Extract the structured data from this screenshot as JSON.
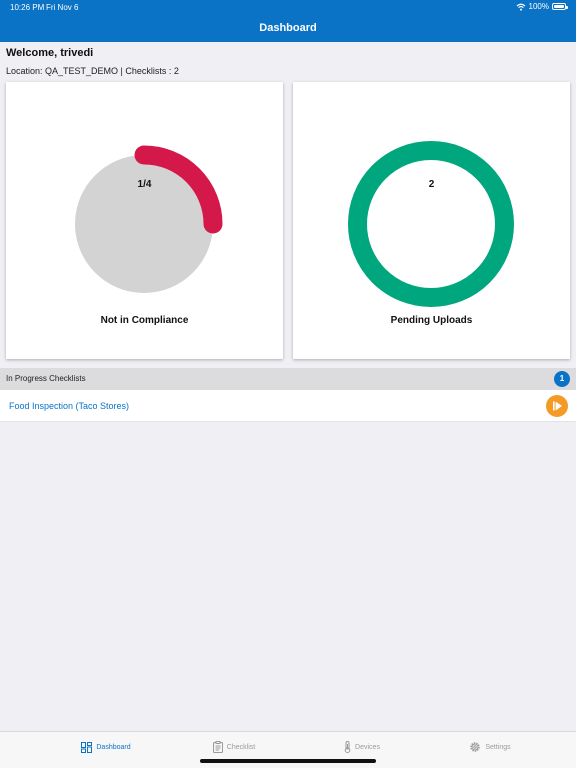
{
  "status_bar": {
    "time": "10:26 PM",
    "date": "Fri Nov 6",
    "battery": "100%",
    "icons": [
      "wifi-icon",
      "battery-icon"
    ]
  },
  "header": {
    "title": "Dashboard"
  },
  "welcome": {
    "greeting": "Welcome, trivedi",
    "location_line": "Location: QA_TEST_DEMO | Checklists : 2"
  },
  "cards": [
    {
      "value": "1/4",
      "label": "Not in Compliance",
      "progress_fraction": 0.25,
      "colors": {
        "track": "#d3d3d3",
        "arc": "#d4184a"
      }
    },
    {
      "value": "2",
      "label": "Pending Uploads",
      "colors": {
        "ring": "#00a67d"
      }
    }
  ],
  "in_progress": {
    "title": "In Progress Checklists",
    "count": "1",
    "items": [
      {
        "label": "Food Inspection (Taco Stores)",
        "action_icon": "play-icon"
      }
    ]
  },
  "tabs": [
    {
      "label": "Dashboard",
      "icon": "dashboard-icon",
      "active": true
    },
    {
      "label": "Checklist",
      "icon": "clipboard-icon",
      "active": false
    },
    {
      "label": "Devices",
      "icon": "thermometer-icon",
      "active": false
    },
    {
      "label": "Settings",
      "icon": "gear-icon",
      "active": false
    }
  ],
  "colors": {
    "brand": "#0a73c6",
    "accent_orange": "#f39a27",
    "background": "#efeff4"
  }
}
